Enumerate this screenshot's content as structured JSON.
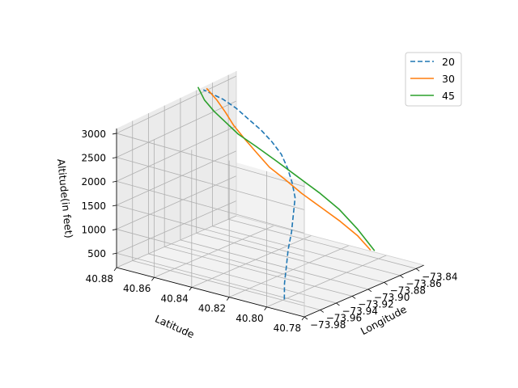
{
  "chart_data": {
    "type": "line",
    "projection": "3d",
    "title": "",
    "xlabel": "Longitude",
    "ylabel": "Latitude",
    "zlabel": "Altitude(in feet)",
    "xlim": [
      -73.98,
      -73.83
    ],
    "ylim": [
      40.78,
      40.88
    ],
    "zlim": [
      200,
      3100
    ],
    "x_ticks": [
      -73.98,
      -73.96,
      -73.94,
      -73.92,
      -73.9,
      -73.88,
      -73.86,
      -73.84
    ],
    "x_tick_labels": [
      "−73.98",
      "−73.96",
      "−73.94",
      "−73.92",
      "−73.90",
      "−73.88",
      "−73.86",
      "−73.84"
    ],
    "y_ticks": [
      40.78,
      40.8,
      40.82,
      40.84,
      40.86,
      40.88
    ],
    "y_tick_labels": [
      "40.78",
      "40.80",
      "40.82",
      "40.84",
      "40.86",
      "40.88"
    ],
    "z_ticks": [
      500,
      1000,
      1500,
      2000,
      2500,
      3000
    ],
    "z_tick_labels": [
      "500",
      "1000",
      "1500",
      "2000",
      "2500",
      "3000"
    ],
    "grid": true,
    "legend": "top-right",
    "series": [
      {
        "name": "20",
        "color": "#1f77b4",
        "style": "dashed",
        "x": [
          -73.958,
          -73.946,
          -73.932,
          -73.918,
          -73.902,
          -73.888,
          -73.874,
          -73.866,
          -73.86,
          -73.856,
          -73.856,
          -73.858,
          -73.862,
          -73.866,
          -73.87,
          -73.874,
          -73.876
        ],
        "y": [
          40.8,
          40.805,
          40.81,
          40.815,
          40.82,
          40.825,
          40.83,
          40.835,
          40.84,
          40.845,
          40.85,
          40.855,
          40.86,
          40.865,
          40.87,
          40.875,
          40.878
        ],
        "z": [
          200,
          400,
          600,
          800,
          1000,
          1200,
          1400,
          1600,
          1800,
          2000,
          2200,
          2400,
          2600,
          2800,
          2950,
          3050,
          3100
        ]
      },
      {
        "name": "30",
        "color": "#ff7f0e",
        "style": "solid",
        "x": [
          -73.85,
          -73.852,
          -73.86,
          -73.87,
          -73.88,
          -73.888,
          -73.892,
          -73.894,
          -73.894,
          -73.892,
          -73.886,
          -73.878,
          -73.872
        ],
        "y": [
          40.8,
          40.806,
          40.812,
          40.818,
          40.824,
          40.83,
          40.836,
          40.842,
          40.848,
          40.855,
          40.862,
          40.87,
          40.878
        ],
        "z": [
          450,
          700,
          1000,
          1300,
          1600,
          1900,
          2100,
          2350,
          2550,
          2750,
          2900,
          3000,
          3100
        ]
      },
      {
        "name": "45",
        "color": "#2ca02c",
        "style": "solid",
        "x": [
          -73.845,
          -73.848,
          -73.852,
          -73.858,
          -73.866,
          -73.874,
          -73.88,
          -73.884,
          -73.886,
          -73.886,
          -73.884,
          -73.878
        ],
        "y": [
          40.8,
          40.808,
          40.816,
          40.824,
          40.832,
          40.84,
          40.848,
          40.856,
          40.862,
          40.868,
          40.874,
          40.88
        ],
        "z": [
          400,
          800,
          1150,
          1450,
          1750,
          2050,
          2300,
          2500,
          2700,
          2850,
          3000,
          3150
        ]
      }
    ]
  }
}
